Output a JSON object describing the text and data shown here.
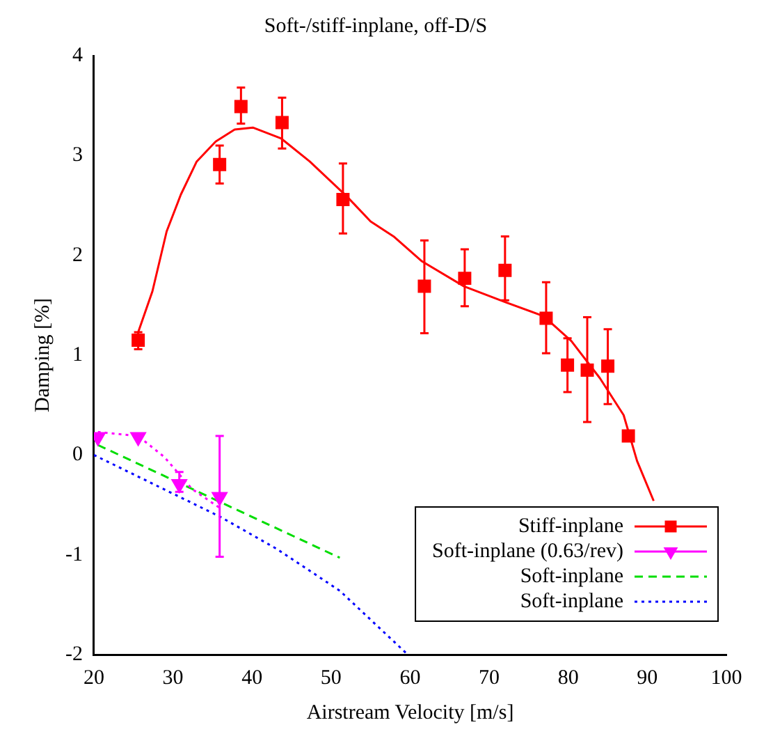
{
  "chart_data": {
    "type": "scatter",
    "title": "Soft-/stiff-inplane, off-D/S",
    "xlabel": "Airstream Velocity [m/s]",
    "ylabel": "Damping [%]",
    "xlim": [
      20,
      100
    ],
    "xticks": [
      20,
      30,
      40,
      50,
      60,
      70,
      80,
      90,
      100
    ],
    "ylim": [
      -2,
      4
    ],
    "yticks": [
      -2,
      -1,
      0,
      1,
      2,
      3,
      4
    ],
    "legend": "bottom right",
    "series": [
      {
        "name": "Stiff-inplane",
        "type": "scatter",
        "color": "#ff0000",
        "marker": "square",
        "x": [
          25.6,
          35.9,
          38.6,
          43.8,
          51.5,
          61.8,
          66.9,
          72.0,
          77.2,
          79.9,
          82.4,
          85.0,
          87.6
        ],
        "values": [
          1.15,
          2.91,
          3.49,
          3.33,
          2.56,
          1.69,
          1.77,
          1.85,
          1.37,
          0.9,
          0.85,
          0.89,
          0.19
        ],
        "errors": [
          [
            1.06,
            1.23
          ],
          [
            2.72,
            3.1
          ],
          [
            3.32,
            3.68
          ],
          [
            3.07,
            3.58
          ],
          [
            2.22,
            2.92
          ],
          [
            1.22,
            2.15
          ],
          [
            1.49,
            2.06
          ],
          [
            1.55,
            2.19
          ],
          [
            1.02,
            1.73
          ],
          [
            0.63,
            1.17
          ],
          [
            0.33,
            1.38
          ],
          [
            0.51,
            1.26
          ],
          null
        ]
      },
      {
        "type": "line",
        "color": "#ff0000",
        "line_style": "solid",
        "x": [
          25.6,
          27.4,
          29.2,
          31.0,
          33.0,
          35.4,
          37.8,
          40.1,
          43.7,
          47.3,
          52.0,
          55.0,
          57.9,
          61.5,
          66.8,
          72.1,
          76.9,
          80.4,
          84.0,
          87.0,
          88.7,
          90.8
        ],
        "values": [
          1.23,
          1.64,
          2.24,
          2.61,
          2.94,
          3.14,
          3.26,
          3.28,
          3.17,
          2.94,
          2.59,
          2.34,
          2.19,
          1.94,
          1.69,
          1.53,
          1.39,
          1.14,
          0.77,
          0.4,
          -0.06,
          -0.46
        ]
      },
      {
        "name": "Soft-inplane (0.63/rev)",
        "type": "scatter",
        "color": "#ff00ff",
        "marker": "triangle",
        "x": [
          20.5,
          25.6,
          30.8,
          35.9
        ],
        "values": [
          0.18,
          0.18,
          -0.29,
          -0.42
        ],
        "errors": [
          null,
          null,
          [
            -0.37,
            -0.17
          ],
          [
            -1.02,
            0.19
          ]
        ]
      },
      {
        "type": "line",
        "color": "#ff00ff",
        "line_style": "dotted",
        "x": [
          20.5,
          25.6,
          28.9,
          32.4,
          35.9
        ],
        "values": [
          0.23,
          0.19,
          -0.02,
          -0.34,
          -0.53
        ]
      },
      {
        "name": "Soft-inplane",
        "type": "line",
        "color": "#00dd00",
        "line_style": "dashed",
        "x": [
          20.5,
          51.1
        ],
        "values": [
          0.1,
          -1.03
        ]
      },
      {
        "name": "Soft-inplane",
        "type": "line",
        "color": "#0000ff",
        "line_style": "dotted",
        "x": [
          20,
          36,
          43.1,
          51.1,
          59.7
        ],
        "values": [
          0.0,
          -0.62,
          -0.94,
          -1.36,
          -2.0
        ]
      }
    ]
  }
}
